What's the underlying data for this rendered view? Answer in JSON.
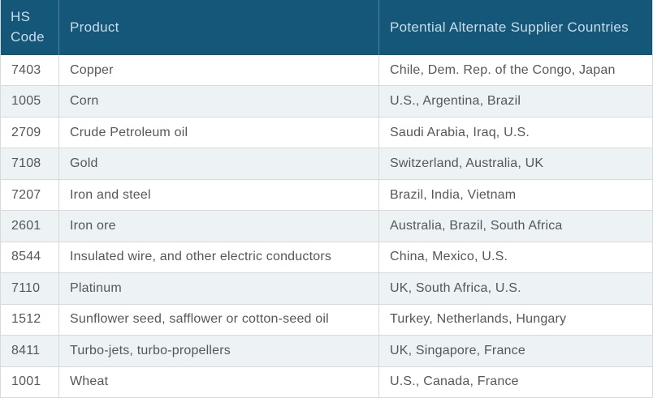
{
  "table": {
    "columns": [
      {
        "id": "hs_code",
        "label": "HS Code"
      },
      {
        "id": "product",
        "label": "Product"
      },
      {
        "id": "countries",
        "label": "Potential Alternate Supplier Countries"
      }
    ],
    "rows": [
      {
        "hs_code": "7403",
        "product": "Copper",
        "countries": "Chile, Dem. Rep. of the Congo, Japan"
      },
      {
        "hs_code": "1005",
        "product": "Corn",
        "countries": "U.S., Argentina, Brazil"
      },
      {
        "hs_code": "2709",
        "product": "Crude Petroleum oil",
        "countries": "Saudi Arabia, Iraq, U.S."
      },
      {
        "hs_code": "7108",
        "product": "Gold",
        "countries": "Switzerland, Australia, UK"
      },
      {
        "hs_code": "7207",
        "product": "Iron and steel",
        "countries": "Brazil, India, Vietnam"
      },
      {
        "hs_code": "2601",
        "product": "Iron ore",
        "countries": "Australia, Brazil, South Africa"
      },
      {
        "hs_code": "8544",
        "product": "Insulated wire, and other electric conductors",
        "countries": "China, Mexico, U.S."
      },
      {
        "hs_code": "7110",
        "product": "Platinum",
        "countries": "UK, South Africa, U.S."
      },
      {
        "hs_code": "1512",
        "product": "Sunflower seed, safflower or cotton-seed oil",
        "countries": "Turkey, Netherlands, Hungary"
      },
      {
        "hs_code": "8411",
        "product": "Turbo-jets, turbo-propellers",
        "countries": "UK, Singapore, France"
      },
      {
        "hs_code": "1001",
        "product": "Wheat",
        "countries": "U.S., Canada, France"
      }
    ]
  },
  "colors": {
    "header_bg": "#155778",
    "header_text": "#cadde8",
    "row_alt_bg": "#edf2f5",
    "row_bg": "#ffffff",
    "border": "#d6dadd",
    "body_text": "#54575b"
  }
}
